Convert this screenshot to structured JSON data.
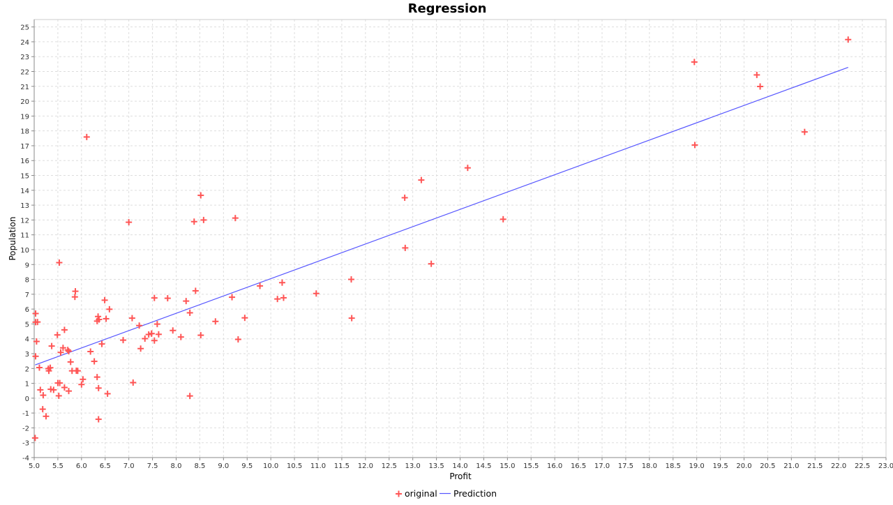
{
  "chart_data": {
    "type": "scatter",
    "title": "Regression",
    "xlabel": "Profit",
    "ylabel": "Population",
    "xlim": [
      5.0,
      23.0
    ],
    "ylim": [
      -4,
      25.5
    ],
    "x_ticks": [
      "5.0",
      "5.5",
      "6.0",
      "6.5",
      "7.0",
      "7.5",
      "8.0",
      "8.5",
      "9.0",
      "9.5",
      "10.0",
      "10.5",
      "11.0",
      "11.5",
      "12.0",
      "12.5",
      "13.0",
      "13.5",
      "14.0",
      "14.5",
      "15.0",
      "15.5",
      "16.0",
      "16.5",
      "17.0",
      "17.5",
      "18.0",
      "18.5",
      "19.0",
      "19.5",
      "20.0",
      "20.5",
      "21.0",
      "21.5",
      "22.0",
      "22.5",
      "23.0"
    ],
    "y_ticks": [
      "-4",
      "-3",
      "-2",
      "-1",
      "0",
      "1",
      "2",
      "3",
      "4",
      "5",
      "6",
      "7",
      "8",
      "9",
      "10",
      "11",
      "12",
      "13",
      "14",
      "15",
      "16",
      "17",
      "18",
      "19",
      "20",
      "21",
      "22",
      "23",
      "24",
      "25"
    ],
    "grid": true,
    "legend_position": "bottom-center",
    "colors": {
      "original": "#ff5555",
      "prediction": "#5555ff",
      "grid": "#dddddd",
      "axis": "#888888"
    },
    "series": [
      {
        "name": "original",
        "kind": "scatter",
        "marker": "plus",
        "points": [
          [
            6.11,
            17.59
          ],
          [
            5.53,
            9.13
          ],
          [
            8.52,
            13.66
          ],
          [
            7.0,
            11.85
          ],
          [
            5.86,
            6.82
          ],
          [
            8.38,
            11.89
          ],
          [
            7.48,
            4.35
          ],
          [
            8.58,
            12.0
          ],
          [
            6.49,
            6.6
          ],
          [
            5.05,
            3.82
          ],
          [
            5.71,
            3.25
          ],
          [
            14.16,
            15.51
          ],
          [
            5.73,
            3.16
          ],
          [
            8.41,
            7.23
          ],
          [
            5.64,
            0.72
          ],
          [
            5.37,
            3.51
          ],
          [
            6.37,
            5.3
          ],
          [
            5.13,
            0.56
          ],
          [
            6.43,
            3.65
          ],
          [
            7.07,
            5.39
          ],
          [
            6.19,
            3.14
          ],
          [
            20.27,
            21.77
          ],
          [
            5.49,
            4.26
          ],
          [
            6.33,
            5.19
          ],
          [
            5.56,
            3.08
          ],
          [
            18.95,
            22.64
          ],
          [
            12.83,
            13.5
          ],
          [
            10.96,
            7.05
          ],
          [
            13.18,
            14.69
          ],
          [
            22.2,
            24.15
          ],
          [
            5.25,
            -1.22
          ],
          [
            6.59,
            5.99
          ],
          [
            9.25,
            12.13
          ],
          [
            5.89,
            1.85
          ],
          [
            8.21,
            6.54
          ],
          [
            7.93,
            4.56
          ],
          [
            8.1,
            4.12
          ],
          [
            5.61,
            3.39
          ],
          [
            12.84,
            10.12
          ],
          [
            6.35,
            5.5
          ],
          [
            5.41,
            0.56
          ],
          [
            6.88,
            3.91
          ],
          [
            11.71,
            5.39
          ],
          [
            5.77,
            2.44
          ],
          [
            7.82,
            6.73
          ],
          [
            7.09,
            1.05
          ],
          [
            5.07,
            5.13
          ],
          [
            5.8,
            1.84
          ],
          [
            11.7,
            8.0
          ],
          [
            5.54,
            1.02
          ],
          [
            7.54,
            6.75
          ],
          [
            5.31,
            1.84
          ],
          [
            7.42,
            4.29
          ],
          [
            7.6,
            4.99
          ],
          [
            6.03,
            1.27
          ],
          [
            6.33,
            1.42
          ],
          [
            6.36,
            -1.42
          ],
          [
            6.27,
            2.48
          ],
          [
            5.64,
            4.6
          ],
          [
            9.31,
            3.96
          ],
          [
            9.45,
            5.41
          ],
          [
            8.83,
            5.17
          ],
          [
            5.18,
            -0.74
          ],
          [
            21.28,
            17.93
          ],
          [
            14.91,
            12.05
          ],
          [
            18.96,
            17.05
          ],
          [
            7.22,
            4.89
          ],
          [
            5.3,
            1.99
          ],
          [
            6.52,
            5.35
          ],
          [
            7.54,
            3.88
          ],
          [
            9.18,
            6.8
          ],
          [
            7.48,
            4.35
          ],
          [
            9.77,
            7.56
          ],
          [
            20.34,
            20.99
          ],
          [
            10.14,
            6.68
          ],
          [
            7.25,
            3.34
          ],
          [
            5.03,
            2.82
          ],
          [
            10.27,
            6.76
          ],
          [
            5.11,
            2.06
          ],
          [
            5.73,
            0.48
          ],
          [
            5.19,
            0.2
          ],
          [
            6.36,
            0.68
          ],
          [
            8.29,
            0.15
          ],
          [
            10.24,
            7.78
          ],
          [
            5.5,
            1.02
          ],
          [
            5.03,
            5.7
          ],
          [
            5.35,
            0.6
          ],
          [
            6.55,
            0.3
          ],
          [
            7.63,
            4.3
          ],
          [
            5.87,
            7.2
          ],
          [
            5.34,
            2.05
          ],
          [
            8.29,
            5.75
          ],
          [
            8.52,
            4.24
          ],
          [
            13.39,
            9.05
          ],
          [
            6.0,
            0.92
          ],
          [
            5.92,
            1.84
          ],
          [
            5.03,
            5.12
          ],
          [
            5.52,
            0.16
          ],
          [
            7.34,
            4.01
          ],
          [
            5.02,
            -2.68
          ]
        ]
      },
      {
        "name": "Prediction",
        "kind": "line",
        "points": [
          [
            5.02,
            2.24
          ],
          [
            22.2,
            22.28
          ]
        ]
      }
    ],
    "legend": [
      {
        "label": "original",
        "marker": "plus"
      },
      {
        "label": "Prediction",
        "marker": "line"
      }
    ]
  }
}
